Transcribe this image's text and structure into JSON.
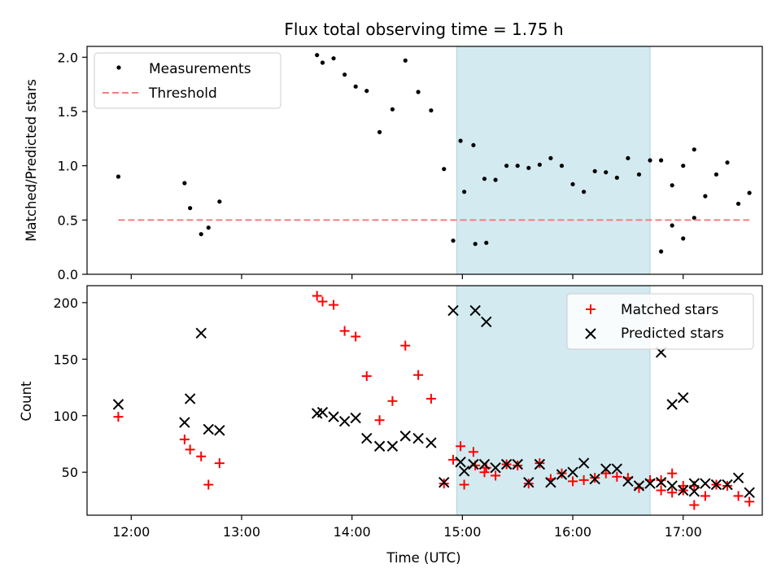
{
  "chart_data": [
    {
      "type": "scatter",
      "title": "Flux total observing time = 1.75 h",
      "xlabel": "",
      "ylabel": "Matched/Predicted stars",
      "xlim": [
        "11:36",
        "17:43"
      ],
      "ylim": [
        0,
        2.1
      ],
      "yticks": [
        0.0,
        0.5,
        1.0,
        1.5,
        2.0
      ],
      "ytick_labels": [
        "0.0",
        "0.5",
        "1.0",
        "1.5",
        "2.0"
      ],
      "xticks": [
        "12:00",
        "13:00",
        "14:00",
        "15:00",
        "16:00",
        "17:00"
      ],
      "shaded_region": {
        "x0": "14:57",
        "x1": "16:42",
        "color": "#d3eaf0"
      },
      "legend": {
        "placement": "top-left",
        "entries": [
          "Measurements",
          "Threshold"
        ]
      },
      "grid": false,
      "series": [
        {
          "name": "Measurements",
          "marker": "dot",
          "color": "#000000",
          "points": [
            [
              "11:53",
              0.9
            ],
            [
              "12:29",
              0.84
            ],
            [
              "12:32",
              0.61
            ],
            [
              "12:38",
              0.37
            ],
            [
              "12:42",
              0.43
            ],
            [
              "12:48",
              0.67
            ],
            [
              "13:41",
              2.02
            ],
            [
              "13:44",
              1.95
            ],
            [
              "13:50",
              1.99
            ],
            [
              "13:56",
              1.84
            ],
            [
              "14:02",
              1.73
            ],
            [
              "14:08",
              1.69
            ],
            [
              "14:15",
              1.31
            ],
            [
              "14:22",
              1.52
            ],
            [
              "14:29",
              1.97
            ],
            [
              "14:36",
              1.68
            ],
            [
              "14:43",
              1.51
            ],
            [
              "14:50",
              0.97
            ],
            [
              "14:55",
              0.31
            ],
            [
              "15:01",
              0.76
            ],
            [
              "15:07",
              0.28
            ],
            [
              "15:13",
              0.29
            ],
            [
              "14:59",
              1.23
            ],
            [
              "15:06",
              1.19
            ],
            [
              "15:12",
              0.88
            ],
            [
              "15:18",
              0.87
            ],
            [
              "15:24",
              1.0
            ],
            [
              "15:30",
              1.0
            ],
            [
              "15:36",
              0.98
            ],
            [
              "15:42",
              1.01
            ],
            [
              "15:48",
              1.07
            ],
            [
              "15:54",
              1.0
            ],
            [
              "16:00",
              0.83
            ],
            [
              "16:06",
              0.76
            ],
            [
              "16:12",
              0.95
            ],
            [
              "16:18",
              0.94
            ],
            [
              "16:24",
              0.89
            ],
            [
              "16:30",
              1.07
            ],
            [
              "16:36",
              0.92
            ],
            [
              "16:42",
              1.05
            ],
            [
              "16:48",
              1.05
            ],
            [
              "16:54",
              0.82
            ],
            [
              "17:00",
              1.0
            ],
            [
              "17:06",
              1.15
            ],
            [
              "16:48",
              0.21
            ],
            [
              "16:54",
              0.45
            ],
            [
              "17:00",
              0.33
            ],
            [
              "17:06",
              0.52
            ],
            [
              "17:12",
              0.72
            ],
            [
              "17:18",
              0.92
            ],
            [
              "17:24",
              1.03
            ],
            [
              "17:30",
              0.65
            ],
            [
              "17:36",
              0.75
            ]
          ]
        },
        {
          "name": "Threshold",
          "marker": "dashed-line",
          "color": "#f08080",
          "points": [
            [
              "11:53",
              0.5
            ],
            [
              "17:36",
              0.5
            ]
          ]
        }
      ]
    },
    {
      "type": "scatter",
      "title": "",
      "xlabel": "Time (UTC)",
      "ylabel": "Count",
      "xlim": [
        "11:36",
        "17:43"
      ],
      "ylim": [
        12,
        215
      ],
      "yticks": [
        50,
        100,
        150,
        200
      ],
      "ytick_labels": [
        "50",
        "100",
        "150",
        "200"
      ],
      "xticks": [
        "12:00",
        "13:00",
        "14:00",
        "15:00",
        "16:00",
        "17:00"
      ],
      "xtick_labels": [
        "12:00",
        "13:00",
        "14:00",
        "15:00",
        "16:00",
        "17:00"
      ],
      "shaded_region": {
        "x0": "14:57",
        "x1": "16:42",
        "color": "#d3eaf0"
      },
      "legend": {
        "placement": "top-right",
        "entries": [
          "Matched stars",
          "Predicted stars"
        ]
      },
      "grid": false,
      "series": [
        {
          "name": "Matched stars",
          "marker": "plus",
          "color": "#ff0000",
          "points": [
            [
              "11:53",
              99
            ],
            [
              "12:29",
              79
            ],
            [
              "12:32",
              70
            ],
            [
              "12:38",
              64
            ],
            [
              "12:42",
              39
            ],
            [
              "12:48",
              58
            ],
            [
              "13:41",
              206
            ],
            [
              "13:44",
              201
            ],
            [
              "13:50",
              198
            ],
            [
              "13:56",
              175
            ],
            [
              "14:02",
              170
            ],
            [
              "14:08",
              135
            ],
            [
              "14:15",
              96
            ],
            [
              "14:22",
              113
            ],
            [
              "14:29",
              162
            ],
            [
              "14:36",
              136
            ],
            [
              "14:43",
              115
            ],
            [
              "14:50",
              40
            ],
            [
              "14:55",
              61
            ],
            [
              "15:01",
              39
            ],
            [
              "15:07",
              56
            ],
            [
              "15:13",
              54
            ],
            [
              "14:59",
              73
            ],
            [
              "15:06",
              68
            ],
            [
              "15:12",
              50
            ],
            [
              "15:18",
              47
            ],
            [
              "15:24",
              57
            ],
            [
              "15:30",
              56
            ],
            [
              "15:36",
              40
            ],
            [
              "15:42",
              58
            ],
            [
              "15:48",
              44
            ],
            [
              "15:54",
              49
            ],
            [
              "16:00",
              42
            ],
            [
              "16:06",
              43
            ],
            [
              "16:12",
              45
            ],
            [
              "16:18",
              49
            ],
            [
              "16:24",
              46
            ],
            [
              "16:30",
              45
            ],
            [
              "16:36",
              36
            ],
            [
              "16:42",
              43
            ],
            [
              "16:48",
              43
            ],
            [
              "16:54",
              32
            ],
            [
              "17:00",
              34
            ],
            [
              "17:06",
              38
            ],
            [
              "16:48",
              34
            ],
            [
              "16:54",
              49
            ],
            [
              "17:00",
              38
            ],
            [
              "17:06",
              21
            ],
            [
              "17:12",
              29
            ],
            [
              "17:18",
              39
            ],
            [
              "17:24",
              38
            ],
            [
              "17:30",
              29
            ],
            [
              "17:36",
              24
            ]
          ]
        },
        {
          "name": "Predicted stars",
          "marker": "x",
          "color": "#000000",
          "points": [
            [
              "11:53",
              110
            ],
            [
              "12:29",
              94
            ],
            [
              "12:32",
              115
            ],
            [
              "12:38",
              173
            ],
            [
              "12:42",
              88
            ],
            [
              "12:48",
              87
            ],
            [
              "13:41",
              102
            ],
            [
              "13:44",
              103
            ],
            [
              "13:50",
              99
            ],
            [
              "13:56",
              95
            ],
            [
              "14:02",
              98
            ],
            [
              "14:08",
              80
            ],
            [
              "14:15",
              73
            ],
            [
              "14:22",
              73
            ],
            [
              "14:29",
              82
            ],
            [
              "14:36",
              80
            ],
            [
              "14:43",
              76
            ],
            [
              "14:50",
              41
            ],
            [
              "14:55",
              193
            ],
            [
              "15:01",
              51
            ],
            [
              "15:07",
              193
            ],
            [
              "15:13",
              183
            ],
            [
              "14:59",
              59
            ],
            [
              "15:06",
              57
            ],
            [
              "15:12",
              57
            ],
            [
              "15:18",
              54
            ],
            [
              "15:24",
              57
            ],
            [
              "15:30",
              57
            ],
            [
              "15:36",
              41
            ],
            [
              "15:42",
              57
            ],
            [
              "15:48",
              41
            ],
            [
              "15:54",
              48
            ],
            [
              "16:00",
              50
            ],
            [
              "16:06",
              58
            ],
            [
              "16:12",
              44
            ],
            [
              "16:18",
              53
            ],
            [
              "16:24",
              53
            ],
            [
              "16:30",
              42
            ],
            [
              "16:36",
              38
            ],
            [
              "16:42",
              40
            ],
            [
              "16:48",
              41
            ],
            [
              "16:54",
              38
            ],
            [
              "17:00",
              34
            ],
            [
              "17:06",
              33
            ],
            [
              "16:48",
              156
            ],
            [
              "16:54",
              110
            ],
            [
              "17:00",
              116
            ],
            [
              "17:06",
              40
            ],
            [
              "17:12",
              40
            ],
            [
              "17:18",
              39
            ],
            [
              "17:24",
              39
            ],
            [
              "17:30",
              45
            ],
            [
              "17:36",
              32
            ]
          ]
        }
      ]
    }
  ]
}
